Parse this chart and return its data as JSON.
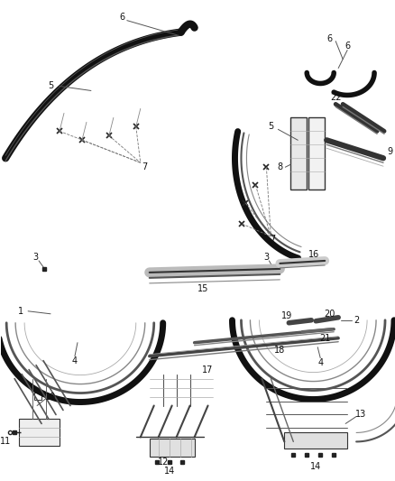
{
  "bg_color": "#ffffff",
  "line_color": "#222222",
  "label_color": "#111111",
  "fig_width": 4.38,
  "fig_height": 5.33,
  "dpi": 100
}
